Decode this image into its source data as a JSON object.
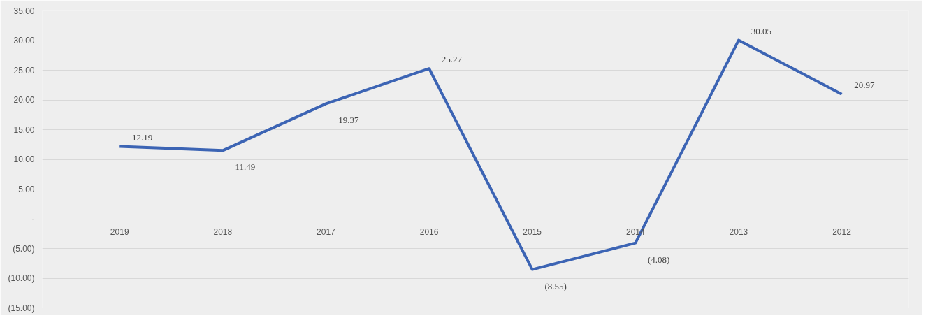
{
  "chart_data": {
    "type": "line",
    "categories": [
      "2019",
      "2018",
      "2017",
      "2016",
      "2015",
      "2014",
      "2013",
      "2012"
    ],
    "series": [
      {
        "color": "#3c64b4",
        "values": [
          12.19,
          11.49,
          19.37,
          25.27,
          -8.55,
          -4.08,
          30.05,
          20.97
        ]
      }
    ],
    "value_labels": [
      "12.19",
      "11.49",
      "19.37",
      "25.27",
      "(8.55)",
      "(4.08)",
      "30.05",
      "20.97"
    ],
    "ylim": [
      -15,
      35
    ],
    "yticks": [
      {
        "value": -15,
        "label": "(15.00)"
      },
      {
        "value": -10,
        "label": "(10.00)"
      },
      {
        "value": -5,
        "label": "(5.00)"
      },
      {
        "value": 0,
        "label": "-"
      },
      {
        "value": 5,
        "label": "5.00"
      },
      {
        "value": 10,
        "label": "10.00"
      },
      {
        "value": 15,
        "label": "15.00"
      },
      {
        "value": 20,
        "label": "20.00"
      },
      {
        "value": 25,
        "label": "25.00"
      },
      {
        "value": 30,
        "label": "30.00"
      },
      {
        "value": 35,
        "label": "35.00"
      }
    ],
    "grid": "y",
    "marker": "none",
    "line_style": "solid"
  }
}
